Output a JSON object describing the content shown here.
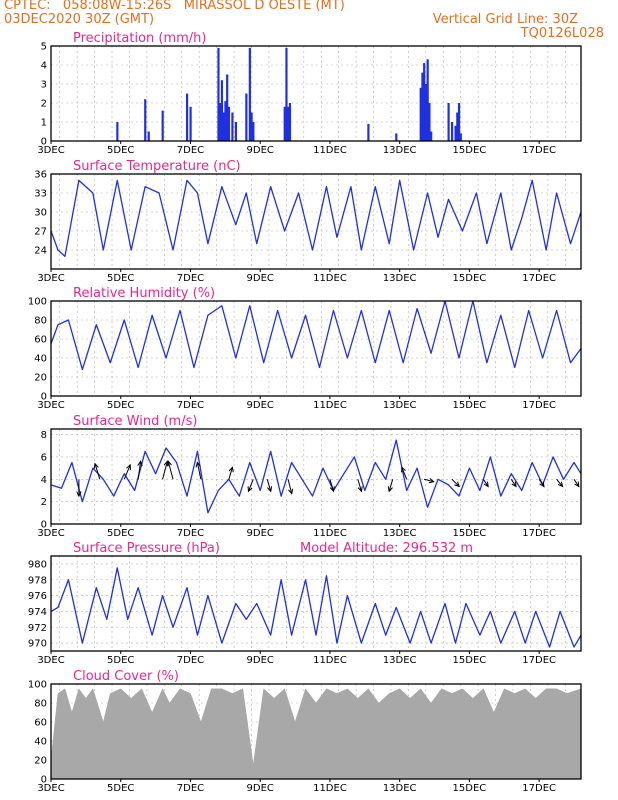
{
  "header": {
    "line1": "CPTEC:   058:08W-15:26S   MIRASSOL D OESTE (MT)",
    "line2": "03DEC2020 30Z (GMT)",
    "right1": "Vertical Grid Line: 30Z",
    "right2": "TQ0126L028"
  },
  "colors": {
    "line": "#2030e0",
    "title": "#e8288c",
    "header": "#e07020",
    "cloud": "#a8a8a8",
    "grid": "#b0b0b0"
  },
  "chart_data": [
    {
      "type": "bar",
      "title": "Precipitation (mm/h)",
      "ylim": [
        0,
        5
      ],
      "yticks": [
        "0",
        "1",
        "2",
        "3",
        "4",
        "5"
      ],
      "xlabels": [
        "3DEC",
        "5DEC",
        "7DEC",
        "9DEC",
        "11DEC",
        "13DEC",
        "15DEC",
        "17DEC"
      ],
      "x_range_days": [
        3,
        18.2
      ],
      "x": [
        4.9,
        5.7,
        5.8,
        6.2,
        6.9,
        7.0,
        7.8,
        7.85,
        7.9,
        7.95,
        8.0,
        8.05,
        8.1,
        8.2,
        8.3,
        8.6,
        8.7,
        8.75,
        8.8,
        9.7,
        9.75,
        9.8,
        9.85,
        12.1,
        12.9,
        13.6,
        13.65,
        13.7,
        13.75,
        13.8,
        13.85,
        13.9,
        14.4,
        14.5,
        14.6,
        14.65,
        14.7,
        14.75
      ],
      "values": [
        1.0,
        2.2,
        0.5,
        1.6,
        2.5,
        1.8,
        4.9,
        2.0,
        3.2,
        1.5,
        2.1,
        3.5,
        1.8,
        1.5,
        1.0,
        2.5,
        4.9,
        1.5,
        1.0,
        1.8,
        4.9,
        1.8,
        2.0,
        0.9,
        0.4,
        2.8,
        3.6,
        4.1,
        3.0,
        4.3,
        2.0,
        0.5,
        2.0,
        1.0,
        0.8,
        1.5,
        2.0,
        0.4
      ]
    },
    {
      "type": "line",
      "title": "Surface Temperature (nC)",
      "ylim": [
        21,
        36
      ],
      "yticks": [
        "24",
        "27",
        "30",
        "33",
        "36"
      ],
      "xlabels": [
        "3DEC",
        "5DEC",
        "7DEC",
        "9DEC",
        "11DEC",
        "13DEC",
        "15DEC",
        "17DEC"
      ],
      "x_range_days": [
        3,
        18.2
      ],
      "x": [
        3.0,
        3.2,
        3.4,
        3.8,
        4.2,
        4.5,
        4.9,
        5.3,
        5.7,
        6.1,
        6.5,
        6.9,
        7.2,
        7.5,
        7.9,
        8.3,
        8.6,
        8.9,
        9.3,
        9.7,
        10.1,
        10.5,
        10.9,
        11.2,
        11.6,
        11.9,
        12.3,
        12.7,
        13.0,
        13.4,
        13.8,
        14.1,
        14.4,
        14.8,
        15.2,
        15.5,
        15.9,
        16.2,
        16.5,
        16.8,
        17.2,
        17.5,
        17.9,
        18.2
      ],
      "values": [
        27,
        24,
        23,
        35,
        33,
        24,
        35,
        24,
        34,
        33,
        24,
        35,
        33,
        25,
        34,
        28,
        33,
        25,
        34,
        27,
        33,
        24,
        34,
        26,
        34,
        24,
        34,
        25,
        35,
        24,
        33,
        26,
        32,
        27,
        33,
        25,
        33,
        24,
        29,
        35,
        24,
        33,
        25,
        30
      ]
    },
    {
      "type": "line",
      "title": "Relative Humidity (%)",
      "ylim": [
        0,
        100
      ],
      "yticks": [
        "0",
        "20",
        "40",
        "60",
        "80",
        "100"
      ],
      "xlabels": [
        "3DEC",
        "5DEC",
        "7DEC",
        "9DEC",
        "11DEC",
        "13DEC",
        "15DEC",
        "17DEC"
      ],
      "x_range_days": [
        3,
        18.2
      ],
      "x": [
        3.0,
        3.2,
        3.5,
        3.9,
        4.3,
        4.7,
        5.1,
        5.5,
        5.9,
        6.3,
        6.7,
        7.1,
        7.5,
        7.9,
        8.3,
        8.7,
        9.1,
        9.5,
        9.9,
        10.3,
        10.7,
        11.1,
        11.5,
        11.9,
        12.3,
        12.7,
        13.1,
        13.5,
        13.9,
        14.3,
        14.7,
        15.1,
        15.5,
        15.9,
        16.3,
        16.7,
        17.1,
        17.5,
        17.9,
        18.2
      ],
      "values": [
        55,
        75,
        80,
        28,
        75,
        35,
        80,
        30,
        85,
        40,
        90,
        30,
        85,
        95,
        40,
        95,
        35,
        90,
        40,
        85,
        30,
        90,
        40,
        90,
        35,
        90,
        35,
        92,
        45,
        100,
        40,
        100,
        35,
        85,
        30,
        90,
        40,
        90,
        35,
        50
      ]
    },
    {
      "type": "line",
      "title": "Surface Wind (m/s)",
      "ylim": [
        0,
        8.5
      ],
      "yticks": [
        "0",
        "2",
        "4",
        "6",
        "8"
      ],
      "xlabels": [
        "3DEC",
        "5DEC",
        "7DEC",
        "9DEC",
        "11DEC",
        "13DEC",
        "15DEC",
        "17DEC"
      ],
      "x_range_days": [
        3,
        18.2
      ],
      "x": [
        3.0,
        3.3,
        3.6,
        3.9,
        4.2,
        4.5,
        4.8,
        5.1,
        5.4,
        5.7,
        6.0,
        6.3,
        6.6,
        6.9,
        7.2,
        7.5,
        7.8,
        8.1,
        8.4,
        8.7,
        9.0,
        9.3,
        9.6,
        9.9,
        10.2,
        10.5,
        10.8,
        11.1,
        11.4,
        11.7,
        12.0,
        12.3,
        12.6,
        12.9,
        13.2,
        13.5,
        13.8,
        14.1,
        14.4,
        14.7,
        15.0,
        15.3,
        15.6,
        15.9,
        16.2,
        16.5,
        16.8,
        17.1,
        17.4,
        17.7,
        18.0,
        18.2
      ],
      "values": [
        3.5,
        3.2,
        5.5,
        2.0,
        5.0,
        4.0,
        2.5,
        4.5,
        3.0,
        6.5,
        4.5,
        6.8,
        5.5,
        2.5,
        6.5,
        1.0,
        3.0,
        4.0,
        2.5,
        5.5,
        3.0,
        6.5,
        2.5,
        5.5,
        4.0,
        2.5,
        5.0,
        3.0,
        4.5,
        6.0,
        3.0,
        5.5,
        4.0,
        7.5,
        3.0,
        5.0,
        1.5,
        4.0,
        3.5,
        2.5,
        5.0,
        3.0,
        6.0,
        2.5,
        4.5,
        3.0,
        5.5,
        3.5,
        6.0,
        4.0,
        5.5,
        4.5
      ],
      "arrows": [
        {
          "x": 3.8,
          "u": 0,
          "v": -1.4
        },
        {
          "x": 4.4,
          "u": -0.4,
          "v": 1.3
        },
        {
          "x": 5.1,
          "u": 0.5,
          "v": 1.2
        },
        {
          "x": 5.5,
          "u": 0.2,
          "v": 1.5
        },
        {
          "x": 6.2,
          "u": 0.4,
          "v": 1.5
        },
        {
          "x": 6.5,
          "u": -0.4,
          "v": 1.5
        },
        {
          "x": 7.3,
          "u": -0.3,
          "v": 1.4
        },
        {
          "x": 8.1,
          "u": 0.3,
          "v": 1.0
        },
        {
          "x": 8.8,
          "u": -0.4,
          "v": -1.0
        },
        {
          "x": 9.2,
          "u": 0.3,
          "v": -1.0
        },
        {
          "x": 9.8,
          "u": 0.3,
          "v": -1.2
        },
        {
          "x": 11.0,
          "u": 0.3,
          "v": -1.0
        },
        {
          "x": 11.8,
          "u": 0.3,
          "v": -1.0
        },
        {
          "x": 12.8,
          "u": -0.3,
          "v": -1.0
        },
        {
          "x": 13.2,
          "u": -0.4,
          "v": 1.0
        },
        {
          "x": 13.7,
          "u": 0.8,
          "v": -0.2
        },
        {
          "x": 14.5,
          "u": 0.6,
          "v": -0.6
        },
        {
          "x": 15.4,
          "u": 0.4,
          "v": -0.6
        },
        {
          "x": 16.2,
          "u": 0.4,
          "v": -0.6
        },
        {
          "x": 17.0,
          "u": 0.4,
          "v": -0.6
        },
        {
          "x": 17.5,
          "u": 0.5,
          "v": -0.6
        },
        {
          "x": 18.0,
          "u": 0.4,
          "v": -0.6
        }
      ]
    },
    {
      "type": "line",
      "title": "Surface Pressure (hPa)",
      "subtitle": "Model Altitude: 296.532 m",
      "ylim": [
        969,
        981
      ],
      "yticks": [
        "970",
        "972",
        "974",
        "976",
        "978",
        "980"
      ],
      "xlabels": [
        "3DEC",
        "5DEC",
        "7DEC",
        "9DEC",
        "11DEC",
        "13DEC",
        "15DEC",
        "17DEC"
      ],
      "x_range_days": [
        3,
        18.2
      ],
      "x": [
        3.0,
        3.2,
        3.5,
        3.9,
        4.3,
        4.6,
        4.9,
        5.2,
        5.5,
        5.9,
        6.2,
        6.5,
        6.9,
        7.2,
        7.5,
        7.9,
        8.3,
        8.6,
        8.9,
        9.3,
        9.6,
        9.9,
        10.3,
        10.6,
        10.9,
        11.2,
        11.5,
        11.9,
        12.3,
        12.6,
        12.9,
        13.3,
        13.6,
        13.9,
        14.3,
        14.6,
        14.9,
        15.3,
        15.6,
        15.9,
        16.3,
        16.6,
        16.9,
        17.3,
        17.6,
        18.0,
        18.2
      ],
      "values": [
        974,
        974.5,
        978,
        970,
        977,
        973,
        979.5,
        973,
        977,
        971,
        976,
        972,
        977,
        971,
        976,
        970,
        975,
        973,
        975,
        971,
        978,
        971,
        978,
        971,
        978.5,
        970,
        976,
        970,
        975,
        971,
        974.5,
        970,
        974,
        970,
        975,
        970,
        975,
        971,
        974,
        970,
        974,
        970,
        974,
        969.5,
        974,
        969.5,
        971
      ]
    },
    {
      "type": "area",
      "title": "Cloud Cover (%)",
      "ylim": [
        0,
        100
      ],
      "yticks": [
        "0",
        "20",
        "40",
        "60",
        "80",
        "100"
      ],
      "xlabels": [
        "3DEC",
        "5DEC",
        "7DEC",
        "9DEC",
        "11DEC",
        "13DEC",
        "15DEC",
        "17DEC"
      ],
      "x_range_days": [
        3,
        18.2
      ],
      "x": [
        3.0,
        3.2,
        3.4,
        3.6,
        3.8,
        4.0,
        4.2,
        4.5,
        4.7,
        5.0,
        5.3,
        5.6,
        5.9,
        6.2,
        6.4,
        6.7,
        7.0,
        7.3,
        7.6,
        7.9,
        8.2,
        8.5,
        8.8,
        9.1,
        9.4,
        9.7,
        10.0,
        10.3,
        10.6,
        10.9,
        11.2,
        11.5,
        11.8,
        12.1,
        12.4,
        12.7,
        13.0,
        13.3,
        13.6,
        13.9,
        14.2,
        14.5,
        14.8,
        15.1,
        15.4,
        15.7,
        16.0,
        16.3,
        16.6,
        16.9,
        17.2,
        17.5,
        17.8,
        18.2
      ],
      "values": [
        20,
        90,
        95,
        70,
        95,
        85,
        95,
        60,
        90,
        95,
        85,
        95,
        70,
        95,
        80,
        95,
        90,
        60,
        95,
        95,
        90,
        95,
        15,
        95,
        85,
        95,
        60,
        95,
        80,
        95,
        90,
        95,
        85,
        95,
        80,
        90,
        95,
        85,
        95,
        80,
        95,
        90,
        95,
        85,
        95,
        70,
        95,
        90,
        95,
        85,
        95,
        95,
        90,
        95
      ]
    }
  ]
}
